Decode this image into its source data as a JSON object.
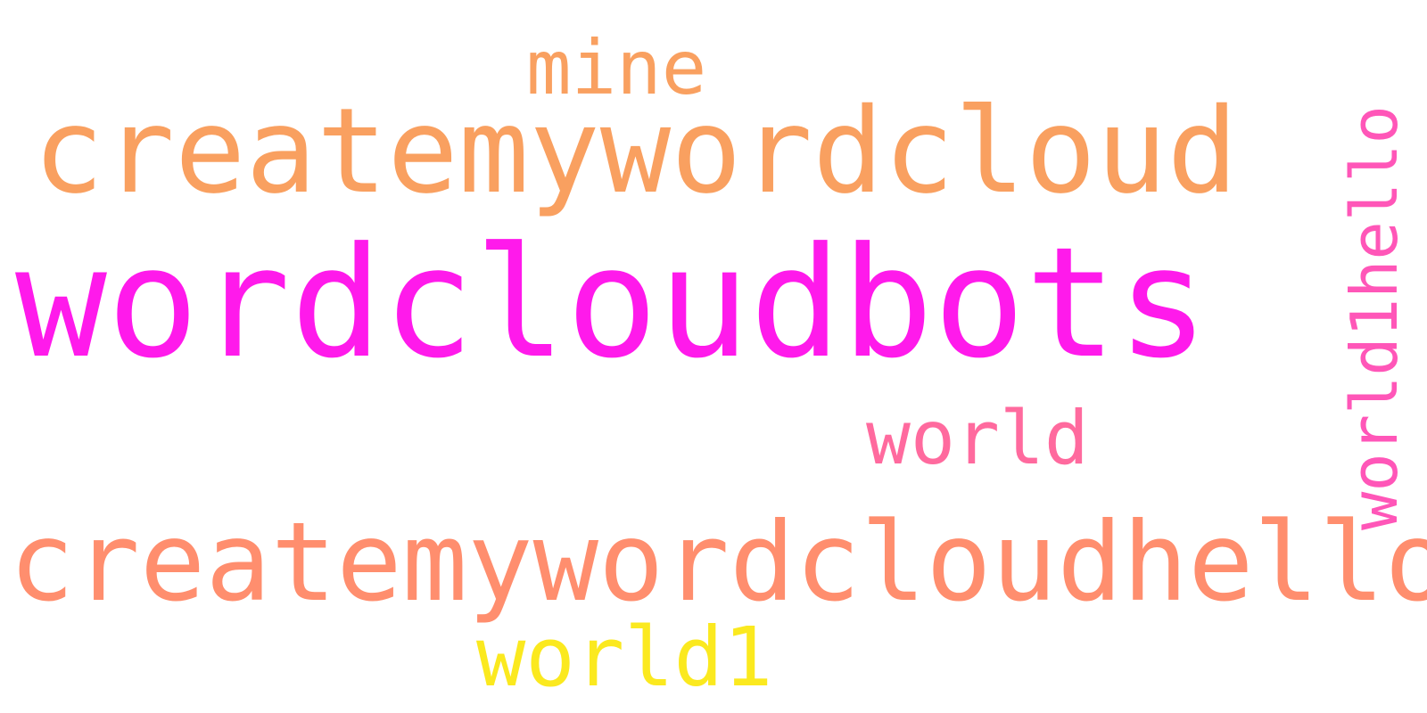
{
  "words": [
    {
      "text": "wordcloudbots",
      "color": "#FF1AEB"
    },
    {
      "text": "createmywordcloud",
      "color": "#F9A060"
    },
    {
      "text": "createmywordcloudhello",
      "color": "#FF8E6E"
    },
    {
      "text": "mine",
      "color": "#F9A060"
    },
    {
      "text": "world",
      "color": "#FF6A9E"
    },
    {
      "text": "world1hello",
      "color": "#FF56B8"
    },
    {
      "text": "world1",
      "color": "#FBE91F"
    }
  ]
}
